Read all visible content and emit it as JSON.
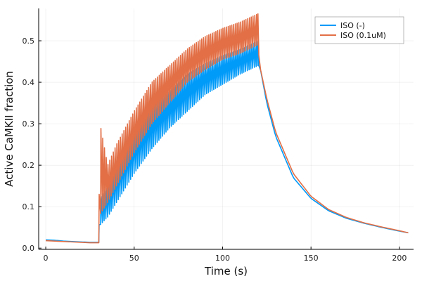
{
  "chart_data": {
    "type": "line",
    "title": "",
    "xlabel": "Time (s)",
    "ylabel": "Active CaMKII fraction",
    "xlim": [
      -4,
      208
    ],
    "ylim": [
      -0.003,
      0.578
    ],
    "xticks": [
      0,
      50,
      100,
      150,
      200
    ],
    "yticks": [
      0.0,
      0.1,
      0.2,
      0.3,
      0.4,
      0.5
    ],
    "ytick_labels": [
      "0.0",
      "0.1",
      "0.2",
      "0.3",
      "0.4",
      "0.5"
    ],
    "grid": true,
    "legend_position": "top-right",
    "stimulation": {
      "start": 30,
      "end": 120,
      "beats_per_second": 1
    },
    "series": [
      {
        "name": "ISO (-)",
        "color": "#009af9",
        "x": [
          0,
          5,
          10,
          15,
          20,
          25,
          30,
          30.5,
          35,
          40,
          50,
          60,
          70,
          80,
          90,
          100,
          110,
          120,
          121,
          125,
          130,
          140,
          150,
          160,
          170,
          180,
          190,
          200,
          205
        ],
        "lower": [
          0.02,
          0.019,
          0.017,
          0.016,
          0.015,
          0.014,
          0.014,
          0.055,
          0.075,
          0.11,
          0.18,
          0.24,
          0.29,
          0.33,
          0.37,
          0.395,
          0.42,
          0.44,
          0.44,
          0.35,
          0.27,
          0.17,
          0.12,
          0.09,
          0.072,
          0.06,
          0.05,
          0.041,
          0.037
        ],
        "upper": [
          0.02,
          0.019,
          0.017,
          0.016,
          0.015,
          0.014,
          0.014,
          0.12,
          0.15,
          0.2,
          0.28,
          0.34,
          0.38,
          0.42,
          0.445,
          0.465,
          0.48,
          0.5,
          0.44,
          0.35,
          0.27,
          0.17,
          0.12,
          0.09,
          0.072,
          0.06,
          0.05,
          0.041,
          0.037
        ]
      },
      {
        "name": "ISO (0.1uM)",
        "color": "#e26f46",
        "x": [
          0,
          5,
          10,
          15,
          20,
          25,
          30,
          30.5,
          35,
          40,
          50,
          60,
          70,
          80,
          90,
          100,
          110,
          120,
          121,
          125,
          130,
          140,
          150,
          160,
          170,
          180,
          190,
          200,
          205
        ],
        "lower": [
          0.018,
          0.017,
          0.016,
          0.015,
          0.014,
          0.013,
          0.013,
          0.08,
          0.11,
          0.15,
          0.23,
          0.3,
          0.35,
          0.4,
          0.43,
          0.455,
          0.47,
          0.49,
          0.44,
          0.36,
          0.28,
          0.18,
          0.125,
          0.093,
          0.074,
          0.061,
          0.051,
          0.042,
          0.037
        ],
        "upper": [
          0.018,
          0.017,
          0.016,
          0.015,
          0.014,
          0.013,
          0.013,
          0.305,
          0.2,
          0.25,
          0.33,
          0.4,
          0.44,
          0.48,
          0.51,
          0.53,
          0.545,
          0.565,
          0.44,
          0.36,
          0.28,
          0.18,
          0.125,
          0.093,
          0.074,
          0.061,
          0.051,
          0.042,
          0.037
        ]
      }
    ]
  }
}
